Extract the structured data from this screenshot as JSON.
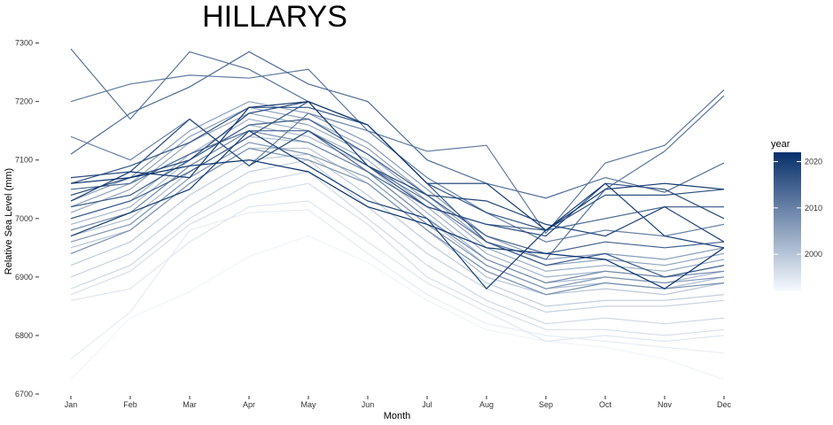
{
  "chart_data": {
    "type": "line",
    "title": "HILLARYS",
    "xlabel": "Month",
    "ylabel": "Relative Sea Level (mm)",
    "categories": [
      "Jan",
      "Feb",
      "Mar",
      "Apr",
      "May",
      "Jun",
      "Jul",
      "Aug",
      "Sep",
      "Oct",
      "Nov",
      "Dec"
    ],
    "ylim": [
      6700,
      7310
    ],
    "yticks": [
      6700,
      6800,
      6900,
      7000,
      7100,
      7200,
      7300
    ],
    "grid": false,
    "legend": {
      "title": "year",
      "position": "right",
      "min": 1992,
      "max": 2022,
      "ticks": [
        2000,
        2010,
        2020
      ],
      "low_color": "#f7fbff",
      "high_color": "#08306b"
    },
    "series": [
      {
        "year": 1993,
        "values": [
          6725,
          6830,
          6875,
          6935,
          6970,
          6925,
          6860,
          6810,
          6790,
          6780,
          6760,
          6725
        ]
      },
      {
        "year": 1994,
        "values": [
          6760,
          6840,
          6980,
          7010,
          7015,
          6940,
          6870,
          6820,
          6800,
          6790,
          6780,
          6770
        ]
      },
      {
        "year": 1995,
        "values": [
          6860,
          6880,
          6960,
          7020,
          7030,
          6960,
          6890,
          6840,
          6790,
          6800,
          6790,
          6800
        ]
      },
      {
        "year": 1996,
        "values": [
          6870,
          6910,
          6990,
          7040,
          7060,
          6990,
          6900,
          6850,
          6810,
          6810,
          6800,
          6810
        ]
      },
      {
        "year": 1997,
        "values": [
          6880,
          6920,
          7000,
          7060,
          7080,
          7000,
          6920,
          6860,
          6820,
          6830,
          6820,
          6830
        ]
      },
      {
        "year": 1998,
        "values": [
          6900,
          6940,
          7020,
          7080,
          7100,
          7020,
          6940,
          6880,
          6840,
          6850,
          6850,
          6860
        ]
      },
      {
        "year": 1999,
        "values": [
          6920,
          6960,
          7040,
          7100,
          7110,
          7040,
          6960,
          6890,
          6850,
          6860,
          6860,
          6870
        ]
      },
      {
        "year": 2000,
        "values": [
          6950,
          6980,
          7060,
          7120,
          7120,
          7060,
          6980,
          6900,
          6870,
          6880,
          6870,
          6890
        ]
      },
      {
        "year": 2001,
        "values": [
          6970,
          7000,
          7080,
          7140,
          7130,
          7080,
          7000,
          6920,
          6880,
          6890,
          6880,
          6900
        ]
      },
      {
        "year": 2002,
        "values": [
          6990,
          7020,
          7100,
          7160,
          7140,
          7090,
          7010,
          6930,
          6890,
          6900,
          6890,
          6910
        ]
      },
      {
        "year": 2003,
        "values": [
          7000,
          7030,
          7110,
          7170,
          7150,
          7100,
          7020,
          6940,
          6900,
          6910,
          6900,
          6920
        ]
      },
      {
        "year": 2004,
        "values": [
          7010,
          7050,
          7130,
          7180,
          7160,
          7110,
          7030,
          6950,
          6910,
          6920,
          6910,
          6930
        ]
      },
      {
        "year": 2005,
        "values": [
          7020,
          7060,
          7140,
          7190,
          7170,
          7120,
          7040,
          6960,
          6920,
          6930,
          6920,
          6940
        ]
      },
      {
        "year": 2006,
        "values": [
          7030,
          7070,
          7150,
          7200,
          7180,
          7130,
          7050,
          6970,
          6930,
          6940,
          6930,
          6950
        ]
      },
      {
        "year": 2007,
        "values": [
          6960,
          6990,
          7070,
          7130,
          7110,
          7070,
          6990,
          6920,
          6880,
          6900,
          6890,
          6900
        ]
      },
      {
        "year": 2008,
        "values": [
          6940,
          6980,
          7060,
          7120,
          7100,
          7060,
          6980,
          6910,
          6870,
          6890,
          6880,
          6890
        ]
      },
      {
        "year": 2009,
        "values": [
          6980,
          7010,
          7090,
          7150,
          7130,
          7080,
          7000,
          6930,
          6890,
          6910,
          6900,
          6910
        ]
      },
      {
        "year": 2010,
        "values": [
          7140,
          7100,
          7170,
          7090,
          7180,
          7150,
          7070,
          7010,
          6960,
          6980,
          6970,
          6990
        ]
      },
      {
        "year": 2011,
        "values": [
          7200,
          7230,
          7245,
          7240,
          7255,
          7150,
          7115,
          7125,
          6975,
          7095,
          7125,
          7220
        ]
      },
      {
        "year": 2012,
        "values": [
          7290,
          7170,
          7285,
          7255,
          7200,
          7090,
          7030,
          6960,
          6930,
          7050,
          7115,
          7210
        ]
      },
      {
        "year": 2013,
        "values": [
          7110,
          7180,
          7225,
          7285,
          7230,
          7200,
          7100,
          7060,
          7035,
          7070,
          7045,
          7095
        ]
      },
      {
        "year": 2014,
        "values": [
          7050,
          7060,
          7110,
          7150,
          7150,
          7080,
          7020,
          6990,
          6980,
          7000,
          7020,
          7020
        ]
      },
      {
        "year": 2015,
        "values": [
          7020,
          7040,
          7100,
          7160,
          7170,
          7110,
          7040,
          6970,
          6940,
          6960,
          6950,
          6960
        ]
      },
      {
        "year": 2016,
        "values": [
          7000,
          7030,
          7080,
          7140,
          7200,
          7160,
          7060,
          6960,
          6920,
          6940,
          6900,
          6920
        ]
      },
      {
        "year": 2017,
        "values": [
          7060,
          7090,
          7130,
          7190,
          7190,
          7160,
          7060,
          7010,
          6980,
          7040,
          7040,
          7050
        ]
      },
      {
        "year": 2018,
        "values": [
          7070,
          7080,
          7170,
          7090,
          7150,
          7090,
          7020,
          6990,
          6970,
          7060,
          7050,
          7000
        ]
      },
      {
        "year": 2019,
        "values": [
          7040,
          7070,
          7100,
          7180,
          7200,
          7090,
          7040,
          7030,
          6990,
          6970,
          7020,
          6960
        ]
      },
      {
        "year": 2020,
        "values": [
          6970,
          7010,
          7050,
          7150,
          7090,
          7030,
          7000,
          6880,
          6980,
          7060,
          6970,
          6950
        ]
      },
      {
        "year": 2021,
        "values": [
          7030,
          7080,
          7070,
          7190,
          7200,
          7160,
          7060,
          7060,
          6980,
          7050,
          7060,
          7050
        ]
      },
      {
        "year": 2022,
        "values": [
          7060,
          7070,
          7090,
          7100,
          7080,
          7020,
          6990,
          6950,
          6940,
          6930,
          6880,
          6950
        ]
      }
    ]
  }
}
